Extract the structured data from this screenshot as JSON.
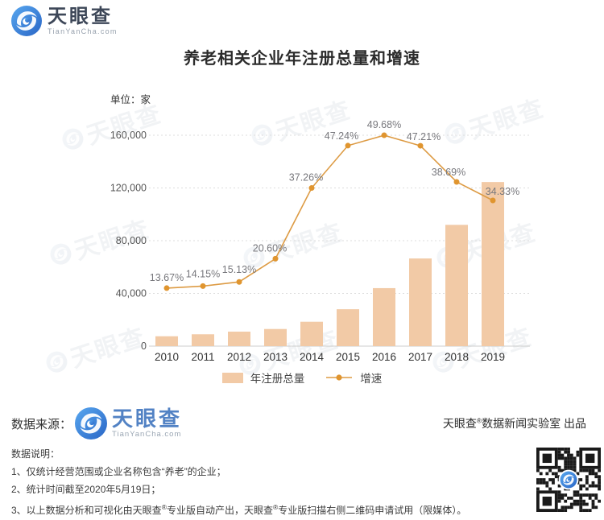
{
  "header": {
    "logo_name": "天眼查",
    "logo_domain": "TianYanCha.com"
  },
  "title": "养老相关企业年注册总量和增速",
  "chart_data": {
    "type": "bar",
    "subtype": "combo-bar-line",
    "title": "养老相关企业年注册总量和增速",
    "unit_label": "单位：家",
    "categories": [
      "2010",
      "2011",
      "2012",
      "2013",
      "2014",
      "2015",
      "2016",
      "2017",
      "2018",
      "2019"
    ],
    "series": [
      {
        "name": "年注册总量",
        "type": "bar",
        "axis": "left",
        "color": "#f2caa6",
        "values": [
          7500,
          9000,
          11000,
          13000,
          18500,
          28000,
          44000,
          66500,
          92000,
          124500
        ]
      },
      {
        "name": "增速",
        "type": "line",
        "axis": "right-hidden",
        "color": "#dd9b44",
        "dot_color": "#e0952f",
        "values": [
          13.67,
          14.15,
          15.13,
          20.6,
          37.26,
          47.24,
          49.68,
          47.21,
          38.69,
          34.33
        ],
        "labels": [
          "13.67%",
          "14.15%",
          "15.13%",
          "20.60%",
          "37.26%",
          "47.24%",
          "49.68%",
          "47.21%",
          "38.69%",
          "34.33%"
        ]
      }
    ],
    "y_axis": {
      "max": 160000,
      "ticks": [
        {
          "value": 160000,
          "label": "160,000"
        },
        {
          "value": 120000,
          "label": "120,000"
        },
        {
          "value": 80000,
          "label": "80,000"
        },
        {
          "value": 40000,
          "label": "40,000"
        },
        {
          "value": 0,
          "label": "0"
        }
      ]
    },
    "pct_axis": {
      "min": 0,
      "max": 55,
      "visible": false
    },
    "grid": "horizontal-dotted",
    "legend_position": "bottom"
  },
  "legend": {
    "bar_label": "年注册总量",
    "line_label": "增速"
  },
  "source": {
    "label": "数据来源：",
    "logo_name": "天眼查",
    "logo_domain": "TianYanCha.com",
    "credit": "天眼查®数据新闻实验室 出品"
  },
  "notes": {
    "heading": "数据说明：",
    "items": [
      "1、仅统计经营范围或企业名称包含“养老”的企业；",
      "2、统计时间截至2020年5月19日；",
      "3、以上数据分析和可视化由天眼查®专业版自动产出，天眼查®专业版扫描右侧二维码申请试用（限媒体）。"
    ]
  },
  "colors": {
    "bar": "#f2caa6",
    "line": "#dd9b44",
    "dot": "#e0952f",
    "logo_blue": "#3a87d7",
    "header_text": "#3d4758",
    "pct_label": "#77777c",
    "watermark": "#5d7190"
  }
}
